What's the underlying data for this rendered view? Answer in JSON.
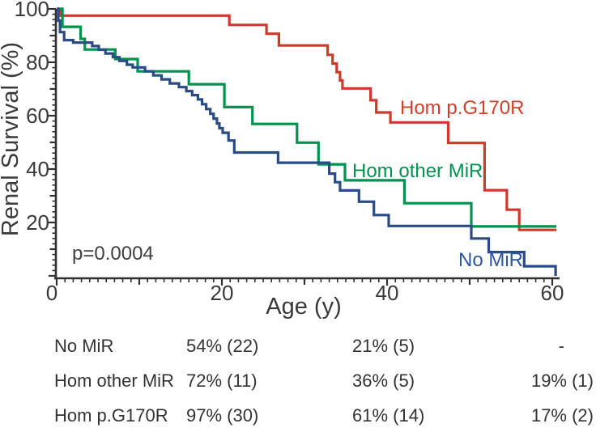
{
  "figure": {
    "p_value": "p=0.0004",
    "colors": {
      "axis": "#303030",
      "red": "#cd3a2c",
      "green": "#00934f",
      "blue": "#2a4c86"
    }
  },
  "chart_data": {
    "type": "line",
    "step": true,
    "subtype": "kaplan-meier-survival",
    "title": "",
    "xlabel": "Age (y)",
    "ylabel": "Renal Survival (%)",
    "xlim": [
      0,
      61
    ],
    "ylim": [
      0,
      100
    ],
    "x_ticks": [
      0,
      20,
      40,
      60
    ],
    "y_ticks": [
      100,
      80,
      60,
      40,
      20
    ],
    "x_tick_labels": [
      "0",
      "20",
      "40",
      "60"
    ],
    "y_tick_labels": [
      "100",
      "80",
      "60",
      "40",
      "20"
    ],
    "x_minor_tick_step": 1,
    "y_minor_tick_step": 2,
    "grid": false,
    "annotation": "p=0.0004",
    "series": [
      {
        "id": "hom-pg170r",
        "name": "Hom p.G170R",
        "color": "#cd3a2c",
        "label_color": "#d0402f",
        "end_age": 60.5,
        "points": [
          [
            0.5,
            97.5
          ],
          [
            20.9,
            94
          ],
          [
            25.4,
            90.7
          ],
          [
            26.9,
            86.3
          ],
          [
            32.8,
            82.8
          ],
          [
            33.4,
            79.5
          ],
          [
            33.9,
            76.3
          ],
          [
            34.3,
            73.2
          ],
          [
            34.6,
            70.2
          ],
          [
            38,
            65.8
          ],
          [
            38.7,
            61.2
          ],
          [
            40.4,
            57.5
          ],
          [
            47.4,
            49.8
          ],
          [
            51.8,
            32.1
          ],
          [
            54.5,
            24.8
          ],
          [
            56,
            17.2
          ]
        ]
      },
      {
        "id": "hom-other-mir",
        "name": "Hom other MiR",
        "color": "#00934f",
        "label_color": "#00934f",
        "end_age": 60.5,
        "points": [
          [
            0.7,
            93.3
          ],
          [
            2.9,
            88.8
          ],
          [
            3.4,
            84.8
          ],
          [
            7.1,
            81.2
          ],
          [
            9.8,
            76.6
          ],
          [
            16,
            71.8
          ],
          [
            20.3,
            63.2
          ],
          [
            23.7,
            56.9
          ],
          [
            29.1,
            49.9
          ],
          [
            31.7,
            41.8
          ],
          [
            34.9,
            35.8
          ],
          [
            42.1,
            27.2
          ],
          [
            50.2,
            18.5
          ]
        ]
      },
      {
        "id": "no-mir",
        "name": "No MiR",
        "color": "#2a4c86",
        "label_color": "#2d57a0",
        "end_age": 60.4,
        "points": [
          [
            0.2,
            95.6
          ],
          [
            0.4,
            91.3
          ],
          [
            0.9,
            88.3
          ],
          [
            2,
            87.4
          ],
          [
            4.3,
            86.1
          ],
          [
            5.1,
            84.7
          ],
          [
            5.9,
            83.3
          ],
          [
            6.8,
            81.9
          ],
          [
            7.6,
            80.5
          ],
          [
            8.5,
            79.1
          ],
          [
            9.2,
            78.1
          ],
          [
            10.7,
            76.6
          ],
          [
            11.7,
            75.1
          ],
          [
            12.7,
            73.6
          ],
          [
            13.7,
            72.1
          ],
          [
            14.8,
            70.7
          ],
          [
            15.7,
            69.2
          ],
          [
            16.4,
            67.7
          ],
          [
            17.1,
            66.1
          ],
          [
            17.6,
            64.3
          ],
          [
            18.1,
            62.5
          ],
          [
            18.6,
            60.7
          ],
          [
            19,
            58.9
          ],
          [
            19.4,
            57.1
          ],
          [
            19.7,
            55.3
          ],
          [
            20.1,
            53.6
          ],
          [
            20.8,
            50.7
          ],
          [
            21.5,
            46.2
          ],
          [
            26.8,
            42.4
          ],
          [
            33,
            38.3
          ],
          [
            33.7,
            35.1
          ],
          [
            34.3,
            32
          ],
          [
            36.6,
            27.8
          ],
          [
            38.4,
            22.8
          ],
          [
            40.2,
            18.7
          ],
          [
            50.2,
            14
          ],
          [
            52.3,
            8.9
          ],
          [
            56.6,
            3.6
          ],
          [
            60.4,
            0
          ]
        ]
      }
    ]
  },
  "table": {
    "rows": [
      {
        "label": "No MiR",
        "values": [
          "54% (22)",
          "21% (5)",
          "-"
        ]
      },
      {
        "label": "Hom other MiR",
        "values": [
          "72% (11)",
          "36% (5)",
          "19% (1)"
        ]
      },
      {
        "label": "Hom p.G170R",
        "values": [
          "97% (30)",
          "61% (14)",
          "17% (2)"
        ]
      }
    ]
  }
}
